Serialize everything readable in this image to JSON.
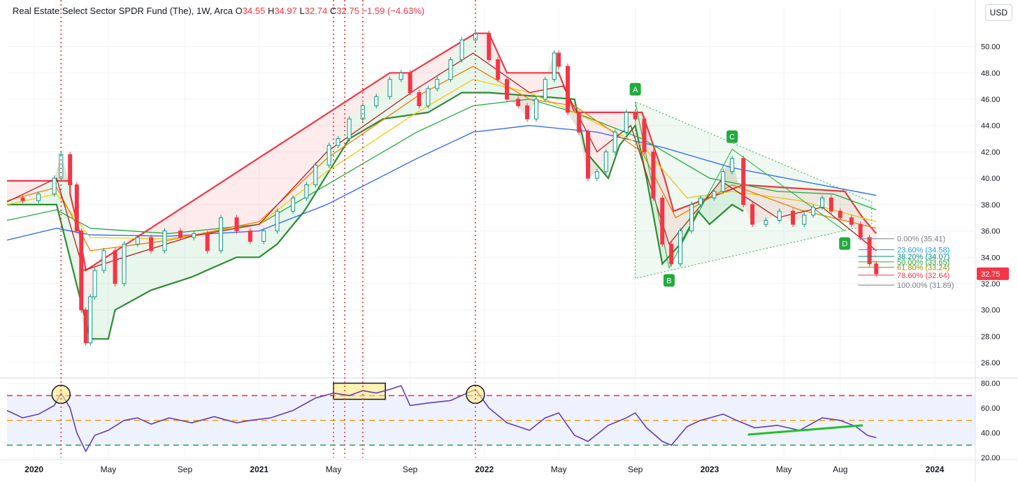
{
  "header": {
    "name": "Real Estate Select Sector SPDR Fund (The), 1W, Arca",
    "o_label": "O",
    "o": "34.55",
    "h_label": "H",
    "h": "34.97",
    "l_label": "L",
    "l": "32.74",
    "c_label": "C",
    "c": "32.75",
    "change": "−1.59 (−4.63%)"
  },
  "currency": "USD",
  "chart_data": {
    "type": "candlestick",
    "price_axis": {
      "ylim": [
        25,
        53
      ],
      "ticks": [
        "26.00",
        "28.00",
        "30.00",
        "32.00",
        "34.00",
        "36.00",
        "38.00",
        "40.00",
        "42.00",
        "44.00",
        "46.00",
        "48.00",
        "50.00"
      ]
    },
    "last_price": {
      "value": 32.75,
      "label": "32.75",
      "color": "#f23645"
    },
    "time_axis_labels": [
      {
        "label": "2020",
        "t": 2020.0,
        "bold": true
      },
      {
        "label": "May",
        "t": 2020.33
      },
      {
        "label": "Sep",
        "t": 2020.67
      },
      {
        "label": "2021",
        "t": 2021.0,
        "bold": true
      },
      {
        "label": "May",
        "t": 2021.33
      },
      {
        "label": "Sep",
        "t": 2021.67
      },
      {
        "label": "2022",
        "t": 2022.0,
        "bold": true
      },
      {
        "label": "May",
        "t": 2022.33
      },
      {
        "label": "Sep",
        "t": 2022.67
      },
      {
        "label": "2023",
        "t": 2023.0,
        "bold": true
      },
      {
        "label": "May",
        "t": 2023.33
      },
      {
        "label": "Aug",
        "t": 2023.58
      },
      {
        "label": "2024",
        "t": 2024.0,
        "bold": true
      }
    ],
    "price_path": [
      [
        2019.88,
        38.5
      ],
      [
        2019.95,
        38.3
      ],
      [
        2020.02,
        38.8
      ],
      [
        2020.09,
        40.0
      ],
      [
        2020.12,
        41.8
      ],
      [
        2020.16,
        39.5
      ],
      [
        2020.19,
        36.0
      ],
      [
        2020.21,
        30.0
      ],
      [
        2020.23,
        27.5
      ],
      [
        2020.25,
        31.0
      ],
      [
        2020.27,
        33.0
      ],
      [
        2020.31,
        34.5
      ],
      [
        2020.36,
        32.0
      ],
      [
        2020.4,
        35.0
      ],
      [
        2020.46,
        35.5
      ],
      [
        2020.52,
        34.5
      ],
      [
        2020.58,
        36.0
      ],
      [
        2020.65,
        35.5
      ],
      [
        2020.71,
        35.8
      ],
      [
        2020.77,
        34.5
      ],
      [
        2020.83,
        37.0
      ],
      [
        2020.9,
        36.0
      ],
      [
        2020.96,
        35.2
      ],
      [
        2021.02,
        36.0
      ],
      [
        2021.08,
        37.5
      ],
      [
        2021.15,
        38.5
      ],
      [
        2021.21,
        39.5
      ],
      [
        2021.25,
        41.0
      ],
      [
        2021.31,
        42.5
      ],
      [
        2021.35,
        43.0
      ],
      [
        2021.4,
        44.5
      ],
      [
        2021.46,
        45.5
      ],
      [
        2021.52,
        46.2
      ],
      [
        2021.58,
        47.5
      ],
      [
        2021.63,
        48.0
      ],
      [
        2021.67,
        46.5
      ],
      [
        2021.71,
        45.5
      ],
      [
        2021.75,
        46.8
      ],
      [
        2021.79,
        47.5
      ],
      [
        2021.85,
        49.0
      ],
      [
        2021.9,
        50.5
      ],
      [
        2021.96,
        51.0
      ],
      [
        2022.02,
        49.0
      ],
      [
        2022.06,
        47.5
      ],
      [
        2022.1,
        46.0
      ],
      [
        2022.15,
        45.5
      ],
      [
        2022.19,
        44.5
      ],
      [
        2022.23,
        46.0
      ],
      [
        2022.27,
        47.5
      ],
      [
        2022.31,
        49.5
      ],
      [
        2022.33,
        48.5
      ],
      [
        2022.37,
        45.0
      ],
      [
        2022.42,
        43.5
      ],
      [
        2022.46,
        40.0
      ],
      [
        2022.5,
        40.5
      ],
      [
        2022.54,
        42.0
      ],
      [
        2022.58,
        43.5
      ],
      [
        2022.63,
        45.0
      ],
      [
        2022.67,
        44.5
      ],
      [
        2022.71,
        42.0
      ],
      [
        2022.75,
        38.5
      ],
      [
        2022.79,
        35.0
      ],
      [
        2022.83,
        33.5
      ],
      [
        2022.87,
        36.0
      ],
      [
        2022.92,
        38.0
      ],
      [
        2022.96,
        38.5
      ],
      [
        2023.02,
        39.0
      ],
      [
        2023.06,
        40.5
      ],
      [
        2023.1,
        41.5
      ],
      [
        2023.15,
        38.0
      ],
      [
        2023.19,
        36.5
      ],
      [
        2023.25,
        36.8
      ],
      [
        2023.31,
        37.5
      ],
      [
        2023.37,
        36.5
      ],
      [
        2023.42,
        37.2
      ],
      [
        2023.46,
        37.8
      ],
      [
        2023.5,
        38.5
      ],
      [
        2023.54,
        37.5
      ],
      [
        2023.58,
        37.0
      ],
      [
        2023.63,
        36.5
      ],
      [
        2023.67,
        35.5
      ],
      [
        2023.71,
        33.5
      ],
      [
        2023.74,
        32.75
      ]
    ],
    "indicators": [
      {
        "name": "",
        "color": "#2962ff",
        "points": [
          [
            2019.88,
            35.3
          ],
          [
            2020.1,
            36.2
          ],
          [
            2020.25,
            35.7
          ],
          [
            2020.6,
            35.6
          ],
          [
            2021.0,
            36.0
          ],
          [
            2021.3,
            38.0
          ],
          [
            2021.7,
            41.5
          ],
          [
            2021.95,
            43.5
          ],
          [
            2022.2,
            44.0
          ],
          [
            2022.5,
            43.5
          ],
          [
            2022.8,
            42.3
          ],
          [
            2023.1,
            40.8
          ],
          [
            2023.4,
            39.8
          ],
          [
            2023.74,
            38.7
          ]
        ]
      },
      {
        "name": "",
        "color": "#22ab3c",
        "points": [
          [
            2019.88,
            36.8
          ],
          [
            2020.1,
            37.6
          ],
          [
            2020.25,
            36.2
          ],
          [
            2020.6,
            35.8
          ],
          [
            2021.0,
            36.5
          ],
          [
            2021.3,
            39.5
          ],
          [
            2021.7,
            43.5
          ],
          [
            2021.95,
            45.5
          ],
          [
            2022.2,
            46.0
          ],
          [
            2022.4,
            45.0
          ],
          [
            2022.7,
            43.0
          ],
          [
            2023.0,
            40.0
          ],
          [
            2023.3,
            39.0
          ],
          [
            2023.55,
            38.8
          ],
          [
            2023.74,
            37.6
          ]
        ]
      },
      {
        "name": "",
        "color": "#f9c80e",
        "points": [
          [
            2019.88,
            38.0
          ],
          [
            2020.1,
            38.8
          ],
          [
            2020.25,
            35.5
          ],
          [
            2020.6,
            35.4
          ],
          [
            2021.0,
            36.5
          ],
          [
            2021.3,
            40.5
          ],
          [
            2021.7,
            45.0
          ],
          [
            2021.95,
            47.5
          ],
          [
            2022.2,
            46.5
          ],
          [
            2022.4,
            45.0
          ],
          [
            2022.7,
            42.5
          ],
          [
            2022.9,
            38.5
          ],
          [
            2023.1,
            39.0
          ],
          [
            2023.4,
            38.3
          ],
          [
            2023.74,
            36.7
          ]
        ]
      },
      {
        "name": "",
        "color": "#f57c00",
        "points": [
          [
            2019.88,
            38.3
          ],
          [
            2020.1,
            39.3
          ],
          [
            2020.25,
            34.5
          ],
          [
            2020.6,
            35.3
          ],
          [
            2021.0,
            36.7
          ],
          [
            2021.3,
            41.5
          ],
          [
            2021.7,
            46.2
          ],
          [
            2021.95,
            48.5
          ],
          [
            2022.2,
            46.0
          ],
          [
            2022.4,
            45.5
          ],
          [
            2022.7,
            42.0
          ],
          [
            2022.85,
            37.0
          ],
          [
            2023.1,
            39.5
          ],
          [
            2023.4,
            37.6
          ],
          [
            2023.74,
            36.2
          ]
        ]
      },
      {
        "name": "",
        "color": "#b71c1c",
        "points": [
          [
            2019.88,
            38.2
          ],
          [
            2020.1,
            40.0
          ],
          [
            2020.22,
            33.0
          ],
          [
            2020.4,
            34.0
          ],
          [
            2020.7,
            35.6
          ],
          [
            2021.0,
            36.5
          ],
          [
            2021.3,
            42.0
          ],
          [
            2021.7,
            46.8
          ],
          [
            2021.95,
            49.5
          ],
          [
            2022.2,
            46.5
          ],
          [
            2022.35,
            47.0
          ],
          [
            2022.5,
            42.0
          ],
          [
            2022.65,
            44.0
          ],
          [
            2022.82,
            35.0
          ],
          [
            2023.05,
            39.8
          ],
          [
            2023.3,
            37.0
          ],
          [
            2023.5,
            37.8
          ],
          [
            2023.74,
            34.5
          ]
        ]
      }
    ],
    "stop_line_upper": [
      [
        2019.88,
        39.8
      ],
      [
        2020.16,
        39.8
      ],
      [
        2020.16,
        38.8
      ],
      [
        2020.2,
        36.0
      ],
      [
        2020.23,
        33.0
      ],
      [
        2021.58,
        48.0
      ],
      [
        2021.67,
        48.0
      ],
      [
        2021.96,
        51.0
      ],
      [
        2022.02,
        51.0
      ],
      [
        2022.1,
        48.0
      ],
      [
        2022.33,
        48.0
      ],
      [
        2022.4,
        45.0
      ],
      [
        2022.6,
        45.0
      ],
      [
        2022.7,
        45.0
      ],
      [
        2022.8,
        40.0
      ],
      [
        2022.84,
        37.5
      ],
      [
        2023.15,
        39.5
      ],
      [
        2023.6,
        39.0
      ],
      [
        2023.68,
        37.0
      ],
      [
        2023.74,
        35.8
      ]
    ],
    "stop_line_lower": [
      [
        2019.88,
        38.0
      ],
      [
        2020.1,
        38.0
      ],
      [
        2020.25,
        27.8
      ],
      [
        2020.33,
        27.8
      ],
      [
        2020.36,
        30.0
      ],
      [
        2020.52,
        31.5
      ],
      [
        2020.7,
        32.5
      ],
      [
        2020.9,
        34.0
      ],
      [
        2021.0,
        34.0
      ],
      [
        2021.08,
        35.0
      ],
      [
        2021.2,
        37.5
      ],
      [
        2021.4,
        43.0
      ],
      [
        2021.55,
        44.5
      ],
      [
        2021.75,
        45.0
      ],
      [
        2021.9,
        46.5
      ],
      [
        2022.02,
        46.5
      ],
      [
        2022.4,
        46.0
      ],
      [
        2022.45,
        42.0
      ],
      [
        2022.55,
        40.0
      ],
      [
        2022.6,
        42.5
      ],
      [
        2022.67,
        44.0
      ],
      [
        2022.72,
        40.0
      ],
      [
        2022.79,
        33.5
      ],
      [
        2022.87,
        35.0
      ],
      [
        2022.95,
        37.5
      ],
      [
        2023.0,
        36.5
      ],
      [
        2023.1,
        38.0
      ],
      [
        2023.15,
        37.5
      ]
    ],
    "abcd_pattern": {
      "points": [
        {
          "label": "A",
          "t": 2022.67,
          "v": 45.8
        },
        {
          "label": "B",
          "t": 2022.82,
          "v": 33.2
        },
        {
          "label": "C",
          "t": 2023.1,
          "v": 42.2
        },
        {
          "label": "D",
          "t": 2023.6,
          "v": 36.0
        }
      ],
      "color": "#22ab3c"
    },
    "fibonacci_levels": [
      {
        "label": "0.00% (35.41)",
        "value": 35.41,
        "color": "#787b86"
      },
      {
        "label": "23.60% (34.58)",
        "value": 34.58,
        "color": "#2196f3"
      },
      {
        "label": "38.20% (34.07)",
        "value": 34.07,
        "color": "#00897b"
      },
      {
        "label": "50.00% (33.65)",
        "value": 33.65,
        "color": "#22ab3c"
      },
      {
        "label": "61.80% (33.24)",
        "value": 33.24,
        "color": "#9c8a00"
      },
      {
        "label": "78.60% (32.64)",
        "value": 32.64,
        "color": "#f23645"
      },
      {
        "label": "100.00% (31.89)",
        "value": 31.89,
        "color": "#787b86"
      }
    ],
    "vertical_markers": [
      2020.12,
      2021.33,
      2021.38,
      2021.46,
      2021.96
    ],
    "rsi": {
      "ylim": [
        20,
        82
      ],
      "ticks": [
        "20.00",
        "40.00",
        "60.00",
        "80.00"
      ],
      "levels": [
        {
          "value": 70,
          "color": "#f23645"
        },
        {
          "value": 50,
          "color": "#f5a623"
        },
        {
          "value": 30,
          "color": "#22ab3c"
        }
      ],
      "path": [
        [
          2019.88,
          58
        ],
        [
          2019.95,
          52
        ],
        [
          2020.02,
          55
        ],
        [
          2020.09,
          62
        ],
        [
          2020.12,
          72
        ],
        [
          2020.16,
          60
        ],
        [
          2020.19,
          40
        ],
        [
          2020.23,
          25
        ],
        [
          2020.27,
          38
        ],
        [
          2020.33,
          42
        ],
        [
          2020.4,
          50
        ],
        [
          2020.46,
          52
        ],
        [
          2020.52,
          47
        ],
        [
          2020.6,
          52
        ],
        [
          2020.7,
          48
        ],
        [
          2020.8,
          53
        ],
        [
          2020.9,
          48
        ],
        [
          2020.96,
          50
        ],
        [
          2021.05,
          52
        ],
        [
          2021.15,
          58
        ],
        [
          2021.25,
          68
        ],
        [
          2021.33,
          72
        ],
        [
          2021.4,
          70
        ],
        [
          2021.46,
          74
        ],
        [
          2021.52,
          72
        ],
        [
          2021.58,
          75
        ],
        [
          2021.63,
          78
        ],
        [
          2021.67,
          62
        ],
        [
          2021.75,
          64
        ],
        [
          2021.85,
          66
        ],
        [
          2021.96,
          75
        ],
        [
          2022.02,
          60
        ],
        [
          2022.1,
          48
        ],
        [
          2022.2,
          42
        ],
        [
          2022.27,
          52
        ],
        [
          2022.33,
          56
        ],
        [
          2022.4,
          38
        ],
        [
          2022.46,
          33
        ],
        [
          2022.55,
          46
        ],
        [
          2022.63,
          52
        ],
        [
          2022.67,
          56
        ],
        [
          2022.72,
          44
        ],
        [
          2022.79,
          33
        ],
        [
          2022.83,
          30
        ],
        [
          2022.9,
          45
        ],
        [
          2022.96,
          50
        ],
        [
          2023.06,
          55
        ],
        [
          2023.12,
          50
        ],
        [
          2023.2,
          44
        ],
        [
          2023.3,
          46
        ],
        [
          2023.4,
          42
        ],
        [
          2023.5,
          52
        ],
        [
          2023.58,
          50
        ],
        [
          2023.65,
          45
        ],
        [
          2023.7,
          38
        ],
        [
          2023.74,
          36
        ]
      ],
      "trendline": [
        [
          2023.17,
          38.5
        ],
        [
          2023.68,
          46
        ]
      ],
      "circles": [
        2020.12,
        2021.96
      ],
      "box": [
        2021.33,
        2021.56
      ]
    }
  }
}
